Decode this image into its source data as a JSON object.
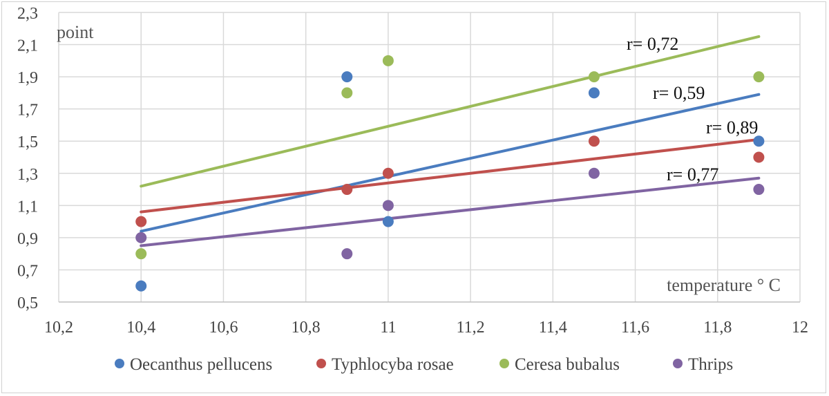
{
  "chart_data": {
    "type": "scatter",
    "xlabel": "temperature ° C",
    "ylabel": "point",
    "xlim": [
      10.2,
      12
    ],
    "ylim": [
      0.5,
      2.3
    ],
    "x_ticks": [
      "10,2",
      "10,4",
      "10,6",
      "10,8",
      "11",
      "11,2",
      "11,4",
      "11,6",
      "11,8",
      "12"
    ],
    "y_ticks": [
      "0,5",
      "0,7",
      "0,9",
      "1,1",
      "1,3",
      "1,5",
      "1,7",
      "1,9",
      "2,1",
      "2,3"
    ],
    "grid": true,
    "legend_position": "bottom",
    "series": [
      {
        "name": "Oecanthus pellucens",
        "color": "#4a7cbf",
        "points": [
          [
            10.4,
            0.6
          ],
          [
            10.9,
            1.9
          ],
          [
            11.0,
            1.0
          ],
          [
            11.5,
            1.8
          ],
          [
            11.9,
            1.5
          ]
        ],
        "trendline": [
          [
            10.4,
            0.94
          ],
          [
            11.9,
            1.79
          ]
        ],
        "r_label": "r= 0,59"
      },
      {
        "name": "Typhlocyba rosae",
        "color": "#c0504d",
        "points": [
          [
            10.4,
            1.0
          ],
          [
            10.9,
            1.2
          ],
          [
            11.0,
            1.3
          ],
          [
            11.5,
            1.5
          ],
          [
            11.9,
            1.4
          ]
        ],
        "trendline": [
          [
            10.4,
            1.06
          ],
          [
            11.9,
            1.51
          ]
        ],
        "r_label": "r= 0,89"
      },
      {
        "name": "Ceresa bubalus",
        "color": "#9bbb59",
        "points": [
          [
            10.4,
            0.8
          ],
          [
            10.9,
            1.8
          ],
          [
            11.0,
            2.0
          ],
          [
            11.5,
            1.9
          ],
          [
            11.9,
            1.9
          ]
        ],
        "trendline": [
          [
            10.4,
            1.22
          ],
          [
            11.9,
            2.15
          ]
        ],
        "r_label": "r= 0,72"
      },
      {
        "name": "Thrips",
        "color": "#8064a2",
        "points": [
          [
            10.4,
            0.9
          ],
          [
            10.9,
            0.8
          ],
          [
            11.0,
            1.1
          ],
          [
            11.5,
            1.3
          ],
          [
            11.9,
            1.2
          ]
        ],
        "trendline": [
          [
            10.4,
            0.85
          ],
          [
            11.9,
            1.27
          ]
        ],
        "r_label": "r= 0,77"
      }
    ]
  }
}
